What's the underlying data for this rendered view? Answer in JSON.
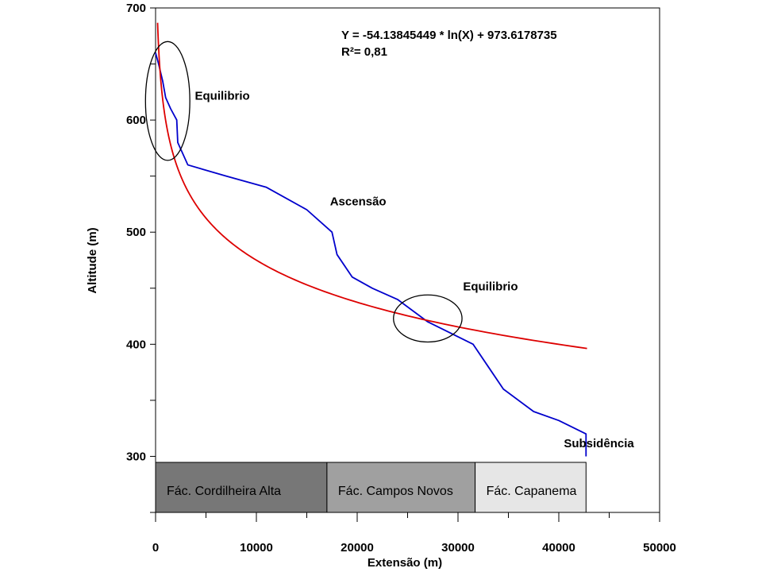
{
  "chart_data": {
    "type": "line",
    "xlabel": "Extensão (m)",
    "ylabel": "Altitude (m)",
    "xlim": [
      0,
      50000
    ],
    "ylim": [
      250,
      700
    ],
    "x_ticks": [
      0,
      10000,
      20000,
      30000,
      40000,
      50000
    ],
    "y_ticks": [
      300,
      400,
      500,
      600,
      700
    ],
    "grid": false,
    "equation": {
      "line1": "Y = -54.13845449 * ln(X) + 973.6178735",
      "line2": "R²=  0,81",
      "a": -54.13845449,
      "b": 973.6178735
    },
    "series": [
      {
        "kind": "profile",
        "color": "#0000cc",
        "points": [
          [
            0,
            660
          ],
          [
            300,
            650
          ],
          [
            700,
            635
          ],
          [
            1000,
            620
          ],
          [
            1500,
            610
          ],
          [
            2100,
            600
          ],
          [
            2200,
            580
          ],
          [
            3200,
            560
          ],
          [
            7000,
            550
          ],
          [
            11000,
            540
          ],
          [
            15000,
            520
          ],
          [
            17500,
            500
          ],
          [
            18000,
            480
          ],
          [
            19500,
            460
          ],
          [
            21500,
            450
          ],
          [
            24000,
            440
          ],
          [
            27000,
            420
          ],
          [
            31500,
            400
          ],
          [
            33000,
            380
          ],
          [
            34500,
            360
          ],
          [
            37500,
            340
          ],
          [
            40000,
            332
          ],
          [
            42700,
            320
          ],
          [
            42700,
            300
          ]
        ]
      },
      {
        "kind": "fit",
        "color": "#dd0000",
        "x_start": 200,
        "x_end": 42800
      }
    ],
    "annotations": [
      {
        "text": "Equilibrio",
        "x": 3900,
        "y": 618
      },
      {
        "text": "Ascensão",
        "x": 17300,
        "y": 524
      },
      {
        "text": "Equilibrio",
        "x": 30500,
        "y": 448
      },
      {
        "text": "Subsidência",
        "x": 40500,
        "y": 308
      }
    ],
    "ellipses": [
      {
        "cx": 1200,
        "cy": 617,
        "rx": 2200,
        "ry": 53
      },
      {
        "cx": 27000,
        "cy": 423,
        "rx": 3400,
        "ry": 21
      }
    ],
    "facies": [
      {
        "label": "Fác. Cordilheira Alta",
        "x_start": 0,
        "x_end": 17000,
        "color": "#777777"
      },
      {
        "label": "Fác. Campos Novos",
        "x_start": 17000,
        "x_end": 31700,
        "color": "#a0a0a0"
      },
      {
        "label": "Fác. Capanema",
        "x_start": 31700,
        "x_end": 42700,
        "color": "#e6e6e6"
      }
    ]
  }
}
